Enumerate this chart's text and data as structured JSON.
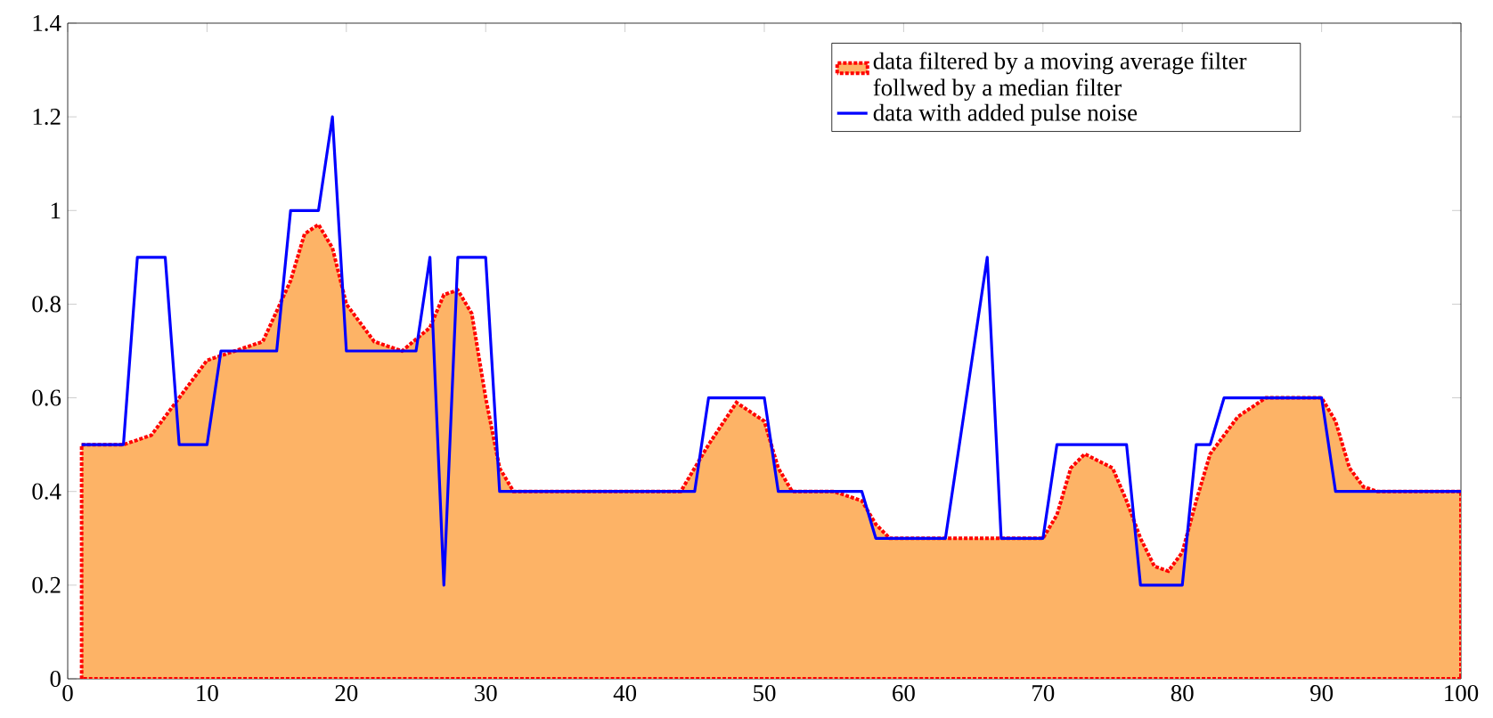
{
  "chart_data": {
    "type": "line",
    "xlim": [
      0,
      100
    ],
    "ylim": [
      0,
      1.4
    ],
    "xticks": [
      0,
      10,
      20,
      30,
      40,
      50,
      60,
      70,
      80,
      90,
      100
    ],
    "yticks": [
      0,
      0.2,
      0.4,
      0.6,
      0.8,
      1,
      1.2,
      1.4
    ],
    "legend": "top right",
    "series": [
      {
        "type": "area",
        "name": "data filtered by a moving average filter follwed by a median filter",
        "color": "#fdb366",
        "line_style": "dotted",
        "x": [
          1,
          4,
          6,
          8,
          10,
          12,
          14,
          16,
          17,
          18,
          19,
          20,
          22,
          24,
          26,
          27,
          28,
          29,
          30,
          31,
          32,
          44,
          46,
          48,
          50,
          51,
          52,
          55,
          57,
          58,
          59,
          70,
          71,
          72,
          73,
          75,
          76,
          77,
          78,
          79,
          80,
          81,
          82,
          84,
          86,
          90,
          91,
          92,
          93,
          94,
          100
        ],
        "values": [
          0.5,
          0.5,
          0.52,
          0.6,
          0.68,
          0.7,
          0.72,
          0.85,
          0.95,
          0.97,
          0.92,
          0.8,
          0.72,
          0.7,
          0.75,
          0.82,
          0.83,
          0.78,
          0.6,
          0.45,
          0.4,
          0.4,
          0.5,
          0.59,
          0.55,
          0.45,
          0.4,
          0.4,
          0.38,
          0.33,
          0.3,
          0.3,
          0.35,
          0.45,
          0.48,
          0.45,
          0.38,
          0.3,
          0.24,
          0.23,
          0.27,
          0.38,
          0.48,
          0.56,
          0.6,
          0.6,
          0.55,
          0.45,
          0.41,
          0.4,
          0.4
        ]
      },
      {
        "name": "data with added pulse noise",
        "color": "#0000ff",
        "line_style": "solid",
        "x": [
          1,
          4,
          5,
          7,
          8,
          10,
          11,
          15,
          16,
          18,
          19,
          20,
          25,
          26,
          27,
          28,
          30,
          31,
          45,
          46,
          50,
          51,
          57,
          58,
          63,
          66,
          67,
          70,
          71,
          76,
          77,
          80,
          81,
          82,
          83,
          90,
          91,
          100
        ],
        "values": [
          0.5,
          0.5,
          0.9,
          0.9,
          0.5,
          0.5,
          0.7,
          0.7,
          1.0,
          1.0,
          1.2,
          0.7,
          0.7,
          0.9,
          0.2,
          0.9,
          0.9,
          0.4,
          0.4,
          0.6,
          0.6,
          0.4,
          0.4,
          0.3,
          0.3,
          0.9,
          0.3,
          0.3,
          0.5,
          0.5,
          0.2,
          0.2,
          0.5,
          0.5,
          0.6,
          0.6,
          0.4,
          0.4
        ]
      }
    ]
  }
}
